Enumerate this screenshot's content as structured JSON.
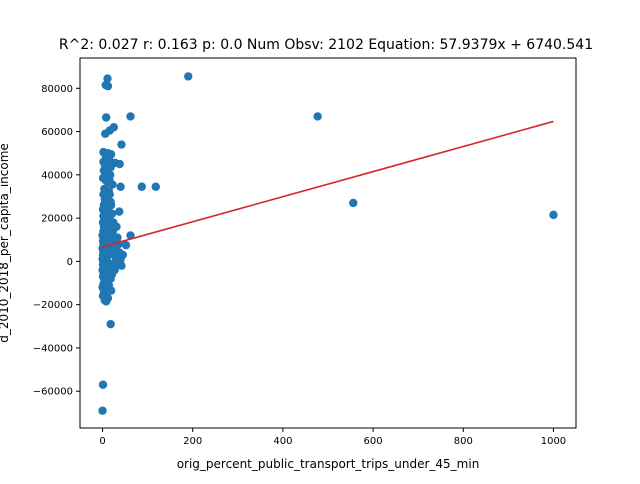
{
  "chart_data": {
    "type": "scatter",
    "title": "R^2: 0.027 r: 0.163 p: 0.0 Num Obsv: 2102 Equation: 57.9379x + 6740.541",
    "xlabel": "orig_percent_public_transport_trips_under_45_min",
    "ylabel": "d_2010_2018_per_capita_income",
    "xlim": [
      -50,
      1050
    ],
    "ylim": [
      -77000,
      94000
    ],
    "x_ticks": [
      0,
      200,
      400,
      600,
      800,
      1000
    ],
    "x_tick_labels": [
      "0",
      "200",
      "400",
      "600",
      "800",
      "1000"
    ],
    "y_ticks": [
      -60000,
      -40000,
      -20000,
      0,
      20000,
      40000,
      60000,
      80000
    ],
    "y_tick_labels": [
      "−60000",
      "−40000",
      "−20000",
      "0",
      "20000",
      "40000",
      "60000",
      "80000"
    ],
    "grid": false,
    "point_color": "#1f77b4",
    "line_color": "#d62728",
    "trendline": {
      "slope": 57.9379,
      "intercept": 6740.541,
      "x_range": [
        0,
        1000
      ]
    },
    "points": [
      {
        "x": 190,
        "y": 85500
      },
      {
        "x": 11,
        "y": 84500
      },
      {
        "x": 7,
        "y": 81500
      },
      {
        "x": 12,
        "y": 81000
      },
      {
        "x": 62,
        "y": 67000
      },
      {
        "x": 477,
        "y": 67000
      },
      {
        "x": 8,
        "y": 66500
      },
      {
        "x": 25,
        "y": 62000
      },
      {
        "x": 16,
        "y": 60500
      },
      {
        "x": 6,
        "y": 59000
      },
      {
        "x": 42,
        "y": 54000
      },
      {
        "x": 2,
        "y": 50500
      },
      {
        "x": 5,
        "y": 50000
      },
      {
        "x": 12,
        "y": 50000
      },
      {
        "x": 19,
        "y": 49500
      },
      {
        "x": 8,
        "y": 48000
      },
      {
        "x": 15,
        "y": 47000
      },
      {
        "x": 2,
        "y": 46000
      },
      {
        "x": 28,
        "y": 45500
      },
      {
        "x": 38,
        "y": 45000
      },
      {
        "x": 6,
        "y": 44000
      },
      {
        "x": 18,
        "y": 43500
      },
      {
        "x": 3,
        "y": 42000
      },
      {
        "x": 10,
        "y": 41000
      },
      {
        "x": 17,
        "y": 40000
      },
      {
        "x": 1,
        "y": 38500
      },
      {
        "x": 7,
        "y": 37500
      },
      {
        "x": 12,
        "y": 36500
      },
      {
        "x": 22,
        "y": 35500
      },
      {
        "x": 40,
        "y": 34500
      },
      {
        "x": 87,
        "y": 34500
      },
      {
        "x": 118,
        "y": 34500
      },
      {
        "x": 4,
        "y": 33500
      },
      {
        "x": 14,
        "y": 32500
      },
      {
        "x": 2,
        "y": 31000
      },
      {
        "x": 9,
        "y": 30000
      },
      {
        "x": 5,
        "y": 28500
      },
      {
        "x": 11,
        "y": 28000
      },
      {
        "x": 18,
        "y": 27500
      },
      {
        "x": 556,
        "y": 27000
      },
      {
        "x": 3,
        "y": 26000
      },
      {
        "x": 8,
        "y": 25000
      },
      {
        "x": 13,
        "y": 24500
      },
      {
        "x": 1,
        "y": 24000
      },
      {
        "x": 37,
        "y": 23000
      },
      {
        "x": 6,
        "y": 23000
      },
      {
        "x": 10,
        "y": 22500
      },
      {
        "x": 1000,
        "y": 21500
      },
      {
        "x": 2,
        "y": 21000
      },
      {
        "x": 15,
        "y": 20500
      },
      {
        "x": 4,
        "y": 19500
      },
      {
        "x": 9,
        "y": 19000
      },
      {
        "x": 1,
        "y": 18000
      },
      {
        "x": 6,
        "y": 17500
      },
      {
        "x": 12,
        "y": 17000
      },
      {
        "x": 3,
        "y": 16000
      },
      {
        "x": 8,
        "y": 15500
      },
      {
        "x": 20,
        "y": 15000
      },
      {
        "x": 2,
        "y": 14000
      },
      {
        "x": 5,
        "y": 13500
      },
      {
        "x": 10,
        "y": 13000
      },
      {
        "x": 0,
        "y": 12000
      },
      {
        "x": 62,
        "y": 12000
      },
      {
        "x": 4,
        "y": 11000
      },
      {
        "x": 7,
        "y": 10500
      },
      {
        "x": 14,
        "y": 10000
      },
      {
        "x": 1,
        "y": 9500
      },
      {
        "x": 3,
        "y": 9000
      },
      {
        "x": 6,
        "y": 8500
      },
      {
        "x": 9,
        "y": 8000
      },
      {
        "x": 2,
        "y": 7500
      },
      {
        "x": 52,
        "y": 7500
      },
      {
        "x": 5,
        "y": 7000
      },
      {
        "x": 11,
        "y": 6500
      },
      {
        "x": 0,
        "y": 6000
      },
      {
        "x": 4,
        "y": 5500
      },
      {
        "x": 8,
        "y": 5000
      },
      {
        "x": 2,
        "y": 4500
      },
      {
        "x": 13,
        "y": 4000
      },
      {
        "x": 6,
        "y": 3500
      },
      {
        "x": 1,
        "y": 3000
      },
      {
        "x": 3,
        "y": 2500
      },
      {
        "x": 10,
        "y": 2000
      },
      {
        "x": 5,
        "y": 1500
      },
      {
        "x": 0,
        "y": 1000
      },
      {
        "x": 7,
        "y": 500
      },
      {
        "x": 2,
        "y": 0
      },
      {
        "x": 12,
        "y": -500
      },
      {
        "x": 4,
        "y": -1000
      },
      {
        "x": 1,
        "y": -1500
      },
      {
        "x": 8,
        "y": -2000
      },
      {
        "x": 3,
        "y": -2500
      },
      {
        "x": 15,
        "y": -3000
      },
      {
        "x": 6,
        "y": -3500
      },
      {
        "x": 0,
        "y": -4000
      },
      {
        "x": 9,
        "y": -4500
      },
      {
        "x": 2,
        "y": -5000
      },
      {
        "x": 5,
        "y": -6000
      },
      {
        "x": 1,
        "y": -7000
      },
      {
        "x": 11,
        "y": -7500
      },
      {
        "x": 4,
        "y": -8500
      },
      {
        "x": 7,
        "y": -9500
      },
      {
        "x": 2,
        "y": -10500
      },
      {
        "x": 14,
        "y": -11000
      },
      {
        "x": 0,
        "y": -12000
      },
      {
        "x": 6,
        "y": -13000
      },
      {
        "x": 19,
        "y": -13500
      },
      {
        "x": 3,
        "y": -14500
      },
      {
        "x": 9,
        "y": -15000
      },
      {
        "x": 1,
        "y": -16000
      },
      {
        "x": 12,
        "y": -17000
      },
      {
        "x": 5,
        "y": -18000
      },
      {
        "x": 8,
        "y": -18500
      },
      {
        "x": 18,
        "y": -29000
      },
      {
        "x": 1,
        "y": -57000
      },
      {
        "x": 0,
        "y": -69000
      },
      {
        "x": 20,
        "y": 5000
      },
      {
        "x": 25,
        "y": 3000
      },
      {
        "x": 30,
        "y": 6000
      },
      {
        "x": 22,
        "y": -2000
      },
      {
        "x": 35,
        "y": 2000
      },
      {
        "x": 28,
        "y": 9000
      },
      {
        "x": 40,
        "y": 1000
      },
      {
        "x": 17,
        "y": 12000
      },
      {
        "x": 24,
        "y": 18000
      },
      {
        "x": 32,
        "y": -1000
      },
      {
        "x": 21,
        "y": 22000
      },
      {
        "x": 27,
        "y": -4000
      },
      {
        "x": 19,
        "y": 26000
      },
      {
        "x": 16,
        "y": 31000
      },
      {
        "x": 23,
        "y": 14000
      },
      {
        "x": 38,
        "y": 4000
      },
      {
        "x": 29,
        "y": 0
      },
      {
        "x": 33,
        "y": 11000
      },
      {
        "x": 26,
        "y": 7000
      },
      {
        "x": 45,
        "y": 3000
      },
      {
        "x": 18,
        "y": -8000
      },
      {
        "x": 21,
        "y": -6000
      },
      {
        "x": 15,
        "y": 38000
      },
      {
        "x": 13,
        "y": 44000
      },
      {
        "x": 24,
        "y": -3000
      },
      {
        "x": 36,
        "y": 8000
      },
      {
        "x": 31,
        "y": 16000
      },
      {
        "x": 42,
        "y": -2000
      }
    ]
  }
}
